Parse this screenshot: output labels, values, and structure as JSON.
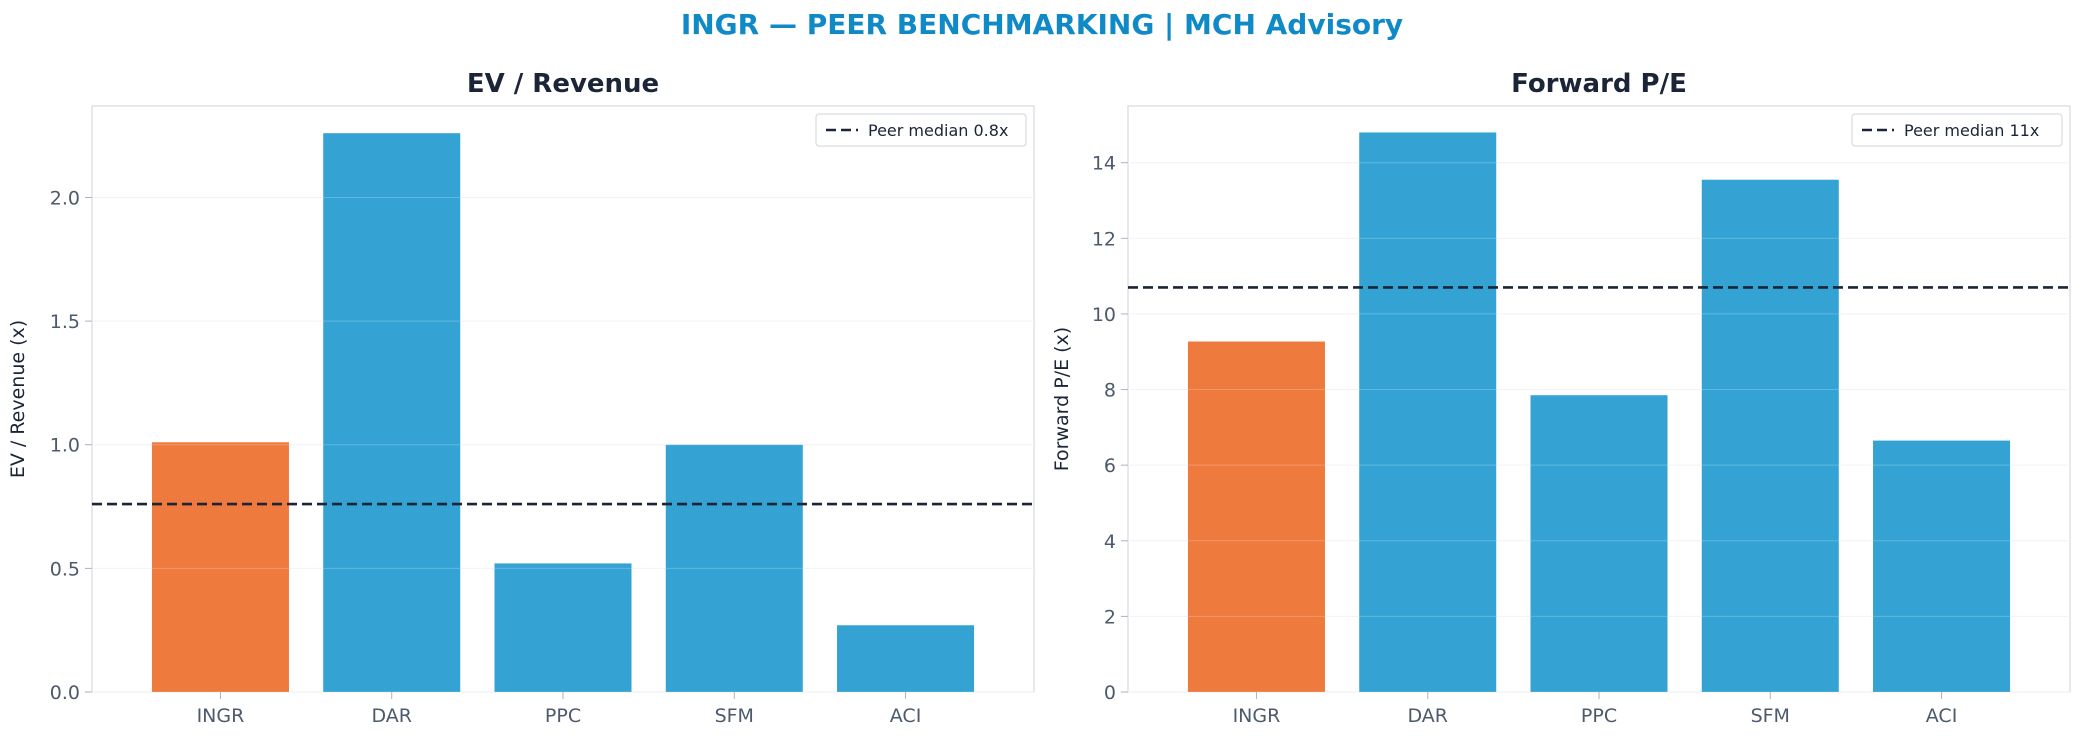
{
  "suptitle": "INGR — PEER BENCHMARKING | MCH Advisory",
  "colors": {
    "highlight": "#ee7a3e",
    "peer": "#34a3d4",
    "median": "#1b2537",
    "title": "#0f8ac7"
  },
  "chart_data": [
    {
      "type": "bar",
      "title": "EV / Revenue",
      "xlabel": "",
      "ylabel": "EV / Revenue (x)",
      "categories": [
        "INGR",
        "DAR",
        "PPC",
        "SFM",
        "ACI"
      ],
      "values": [
        1.01,
        2.26,
        0.52,
        1.0,
        0.27
      ],
      "highlight": "INGR",
      "ylim": [
        0,
        2.37
      ],
      "yticks": [
        0.0,
        0.5,
        1.0,
        1.5,
        2.0
      ],
      "ytick_labels": [
        "0.0",
        "0.5",
        "1.0",
        "1.5",
        "2.0"
      ],
      "reference_line": {
        "value": 0.76,
        "label": "Peer median 0.8x"
      },
      "legend": "top-right",
      "grid": true
    },
    {
      "type": "bar",
      "title": "Forward P/E",
      "xlabel": "",
      "ylabel": "Forward P/E (x)",
      "categories": [
        "INGR",
        "DAR",
        "PPC",
        "SFM",
        "ACI"
      ],
      "values": [
        9.27,
        14.8,
        7.85,
        13.55,
        6.65
      ],
      "highlight": "INGR",
      "ylim": [
        0,
        15.5
      ],
      "yticks": [
        0,
        2,
        4,
        6,
        8,
        10,
        12,
        14
      ],
      "ytick_labels": [
        "0",
        "2",
        "4",
        "6",
        "8",
        "10",
        "12",
        "14"
      ],
      "reference_line": {
        "value": 10.7,
        "label": "Peer median 11x"
      },
      "legend": "top-right",
      "grid": true
    }
  ]
}
